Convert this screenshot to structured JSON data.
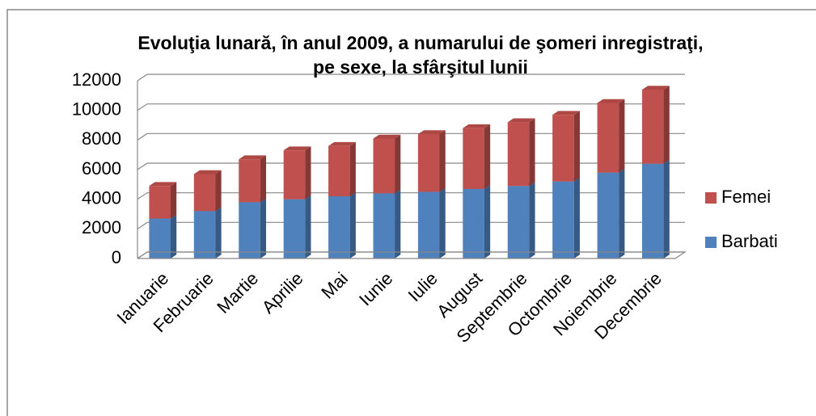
{
  "chart_data": {
    "type": "bar3d_stacked",
    "title": "Evoluţia lunară, în anul 2009, a numarului de şomeri inregistraţi, pe sexe, la sfârşitul lunii",
    "categories": [
      "Ianuarie",
      "Februarie",
      "Martie",
      "Aprilie",
      "Mai",
      "Iunie",
      "Iulie",
      "August",
      "Septembrie",
      "Octombrie",
      "Noiembrie",
      "Decembrie"
    ],
    "series": [
      {
        "name": "Barbati",
        "color": "#4f81bd",
        "values": [
          2700,
          3200,
          3800,
          4000,
          4200,
          4400,
          4500,
          4700,
          4900,
          5200,
          5800,
          6400
        ]
      },
      {
        "name": "Femei",
        "color": "#c0504d",
        "values": [
          2200,
          2500,
          2900,
          3300,
          3400,
          3700,
          3900,
          4100,
          4300,
          4500,
          4700,
          5000
        ]
      }
    ],
    "ylim": [
      0,
      12000
    ],
    "yticks": [
      0,
      2000,
      4000,
      6000,
      8000,
      10000,
      12000
    ],
    "grid": true,
    "legend": "right"
  }
}
